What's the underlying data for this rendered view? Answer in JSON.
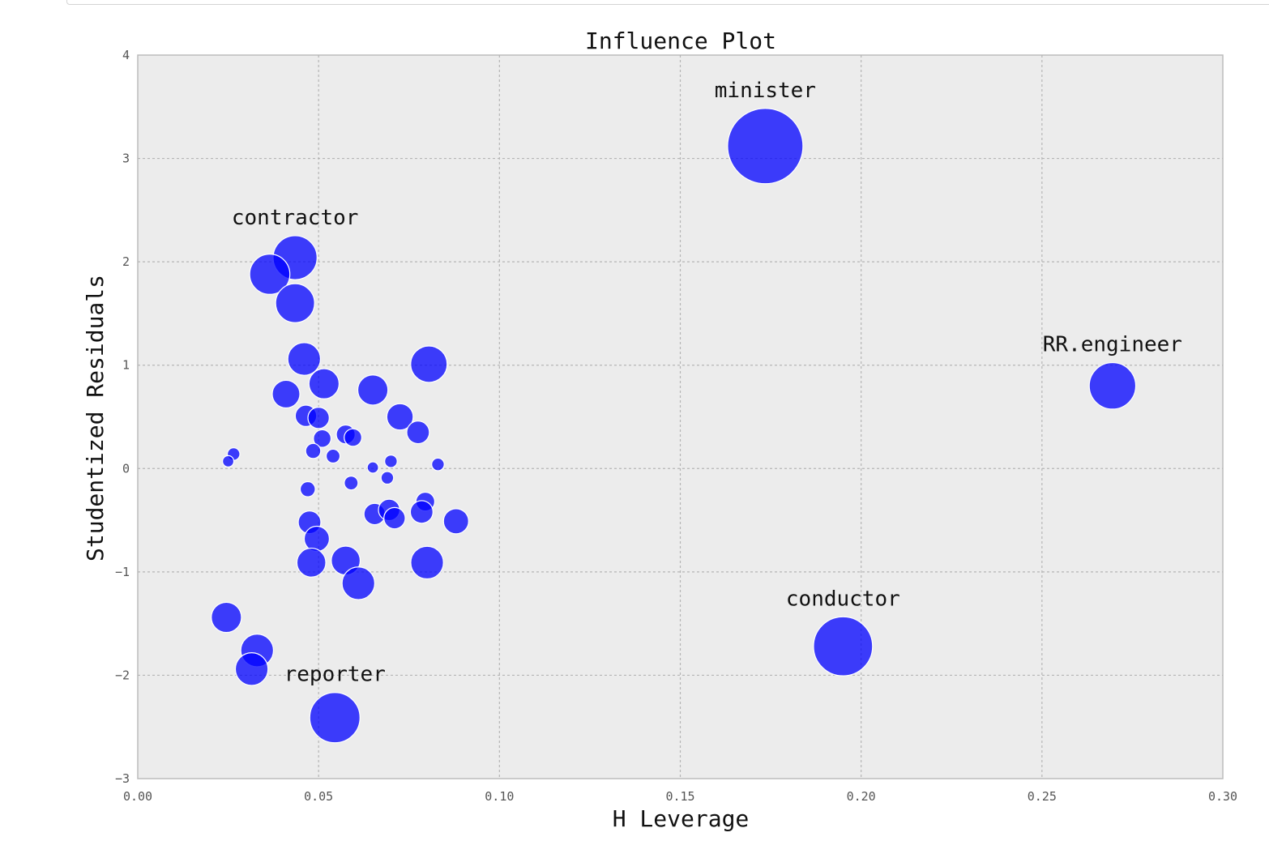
{
  "chart_data": {
    "type": "scatter",
    "title": "Influence Plot",
    "xlabel": "H Leverage",
    "ylabel": "Studentized Residuals",
    "xlim": [
      0.0,
      0.3
    ],
    "ylim": [
      -3,
      4
    ],
    "grid": true,
    "x_ticks": [
      {
        "value": 0.0,
        "label": "0.00"
      },
      {
        "value": 0.05,
        "label": "0.05"
      },
      {
        "value": 0.1,
        "label": "0.10"
      },
      {
        "value": 0.15,
        "label": "0.15"
      },
      {
        "value": 0.2,
        "label": "0.20"
      },
      {
        "value": 0.25,
        "label": "0.25"
      },
      {
        "value": 0.3,
        "label": "0.30"
      }
    ],
    "y_ticks": [
      {
        "value": 4,
        "label": "4"
      },
      {
        "value": 3,
        "label": "3"
      },
      {
        "value": 2,
        "label": "2"
      },
      {
        "value": 1,
        "label": "1"
      },
      {
        "value": 0,
        "label": "0"
      },
      {
        "value": -1,
        "label": "−1"
      },
      {
        "value": -2,
        "label": "−2"
      },
      {
        "value": -3,
        "label": "−3"
      }
    ],
    "marker_color": "#0000ff",
    "marker_opacity": 0.75,
    "points": [
      {
        "x": 0.1735,
        "y": 3.12,
        "size": 3.0,
        "label": "minister"
      },
      {
        "x": 0.195,
        "y": -1.72,
        "size": 2.35,
        "label": "conductor"
      },
      {
        "x": 0.2695,
        "y": 0.8,
        "size": 1.85,
        "label": "RR.engineer"
      },
      {
        "x": 0.0435,
        "y": 2.04,
        "size": 1.75,
        "label": "contractor"
      },
      {
        "x": 0.0545,
        "y": -2.41,
        "size": 2.0,
        "label": "reporter"
      },
      {
        "x": 0.0365,
        "y": 1.88,
        "size": 1.6
      },
      {
        "x": 0.0435,
        "y": 1.6,
        "size": 1.55
      },
      {
        "x": 0.046,
        "y": 1.06,
        "size": 1.3
      },
      {
        "x": 0.0805,
        "y": 1.01,
        "size": 1.45
      },
      {
        "x": 0.041,
        "y": 0.72,
        "size": 1.1
      },
      {
        "x": 0.0515,
        "y": 0.82,
        "size": 1.2
      },
      {
        "x": 0.065,
        "y": 0.76,
        "size": 1.2
      },
      {
        "x": 0.0725,
        "y": 0.5,
        "size": 1.05
      },
      {
        "x": 0.0775,
        "y": 0.35,
        "size": 0.9
      },
      {
        "x": 0.0465,
        "y": 0.51,
        "size": 0.85
      },
      {
        "x": 0.05,
        "y": 0.49,
        "size": 0.85
      },
      {
        "x": 0.051,
        "y": 0.29,
        "size": 0.7
      },
      {
        "x": 0.0575,
        "y": 0.33,
        "size": 0.75
      },
      {
        "x": 0.0595,
        "y": 0.3,
        "size": 0.7
      },
      {
        "x": 0.0485,
        "y": 0.17,
        "size": 0.6
      },
      {
        "x": 0.054,
        "y": 0.12,
        "size": 0.55
      },
      {
        "x": 0.0265,
        "y": 0.14,
        "size": 0.5
      },
      {
        "x": 0.025,
        "y": 0.07,
        "size": 0.45
      },
      {
        "x": 0.07,
        "y": 0.07,
        "size": 0.5
      },
      {
        "x": 0.065,
        "y": 0.01,
        "size": 0.45
      },
      {
        "x": 0.083,
        "y": 0.04,
        "size": 0.5
      },
      {
        "x": 0.069,
        "y": -0.09,
        "size": 0.5
      },
      {
        "x": 0.059,
        "y": -0.14,
        "size": 0.55
      },
      {
        "x": 0.047,
        "y": -0.2,
        "size": 0.6
      },
      {
        "x": 0.0795,
        "y": -0.32,
        "size": 0.75
      },
      {
        "x": 0.0655,
        "y": -0.44,
        "size": 0.85
      },
      {
        "x": 0.0695,
        "y": -0.4,
        "size": 0.85
      },
      {
        "x": 0.071,
        "y": -0.48,
        "size": 0.85
      },
      {
        "x": 0.0785,
        "y": -0.42,
        "size": 0.9
      },
      {
        "x": 0.088,
        "y": -0.51,
        "size": 1.0
      },
      {
        "x": 0.0475,
        "y": -0.52,
        "size": 0.9
      },
      {
        "x": 0.0495,
        "y": -0.68,
        "size": 1.0
      },
      {
        "x": 0.048,
        "y": -0.91,
        "size": 1.15
      },
      {
        "x": 0.0575,
        "y": -0.89,
        "size": 1.15
      },
      {
        "x": 0.061,
        "y": -1.11,
        "size": 1.3
      },
      {
        "x": 0.08,
        "y": -0.91,
        "size": 1.3
      },
      {
        "x": 0.0245,
        "y": -1.44,
        "size": 1.2
      },
      {
        "x": 0.033,
        "y": -1.76,
        "size": 1.3
      },
      {
        "x": 0.0315,
        "y": -1.94,
        "size": 1.3
      }
    ]
  }
}
